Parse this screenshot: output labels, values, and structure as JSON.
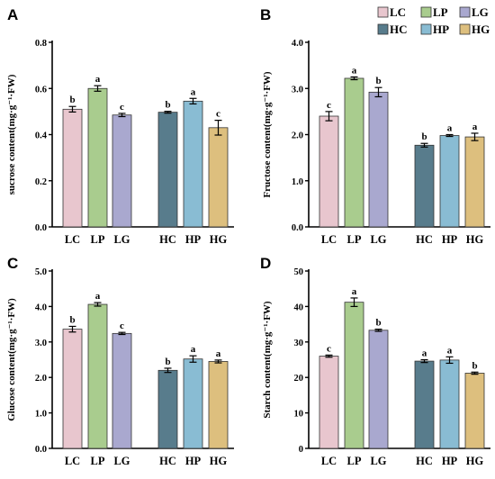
{
  "legend": {
    "items": [
      {
        "label": "LC",
        "color": "#E8C6CE"
      },
      {
        "label": "LP",
        "color": "#A9CC8E"
      },
      {
        "label": "LG",
        "color": "#A9A8CF"
      },
      {
        "label": "HC",
        "color": "#587C8C"
      },
      {
        "label": "HP",
        "color": "#89BCD3"
      },
      {
        "label": "HG",
        "color": "#DDBF7E"
      }
    ]
  },
  "chart_data": [
    {
      "panel": "A",
      "type": "bar",
      "ylabel": "sucrose content(mg·g⁻¹·FW)",
      "ylim": [
        0,
        0.8
      ],
      "yticks": [
        "0.0",
        "0.2",
        "0.4",
        "0.6",
        "0.8"
      ],
      "categories": [
        "LC",
        "LP",
        "LG",
        "HC",
        "HP",
        "HG"
      ],
      "values": [
        0.51,
        0.6,
        0.485,
        0.497,
        0.545,
        0.43
      ],
      "errors": [
        0.012,
        0.012,
        0.007,
        0.004,
        0.012,
        0.032
      ],
      "letters": [
        "b",
        "a",
        "c",
        "b",
        "a",
        "c"
      ]
    },
    {
      "panel": "B",
      "type": "bar",
      "ylabel": "Fructose content(mg·g⁻¹·FW)",
      "ylim": [
        0,
        4.0
      ],
      "yticks": [
        "0.0",
        "1.0",
        "2.0",
        "3.0",
        "4.0"
      ],
      "categories": [
        "LC",
        "LP",
        "LG",
        "HC",
        "HP",
        "HG"
      ],
      "values": [
        2.4,
        3.22,
        2.92,
        1.77,
        1.98,
        1.95
      ],
      "errors": [
        0.1,
        0.03,
        0.1,
        0.04,
        0.02,
        0.08
      ],
      "letters": [
        "c",
        "a",
        "b",
        "b",
        "a",
        "a"
      ]
    },
    {
      "panel": "C",
      "type": "bar",
      "ylabel": "Glucose content(mg·g⁻¹·FW)",
      "ylim": [
        0,
        5.0
      ],
      "yticks": [
        "0.0",
        "1.0",
        "2.0",
        "3.0",
        "4.0",
        "5.0"
      ],
      "categories": [
        "LC",
        "LP",
        "LG",
        "HC",
        "HP",
        "HG"
      ],
      "values": [
        3.36,
        4.06,
        3.24,
        2.2,
        2.52,
        2.45
      ],
      "errors": [
        0.08,
        0.05,
        0.03,
        0.06,
        0.09,
        0.04
      ],
      "letters": [
        "b",
        "a",
        "c",
        "b",
        "a",
        "a"
      ]
    },
    {
      "panel": "D",
      "type": "bar",
      "ylabel": "Starch content(mg·g⁻¹·FW)",
      "ylim": [
        0,
        50
      ],
      "yticks": [
        "0",
        "10",
        "20",
        "30",
        "40",
        "50"
      ],
      "categories": [
        "LC",
        "LP",
        "LG",
        "HC",
        "HP",
        "HG"
      ],
      "values": [
        26.0,
        41.2,
        33.3,
        24.6,
        24.9,
        21.2
      ],
      "errors": [
        0.3,
        1.2,
        0.3,
        0.4,
        0.9,
        0.3
      ],
      "letters": [
        "c",
        "a",
        "b",
        "a",
        "a",
        "b"
      ]
    }
  ]
}
